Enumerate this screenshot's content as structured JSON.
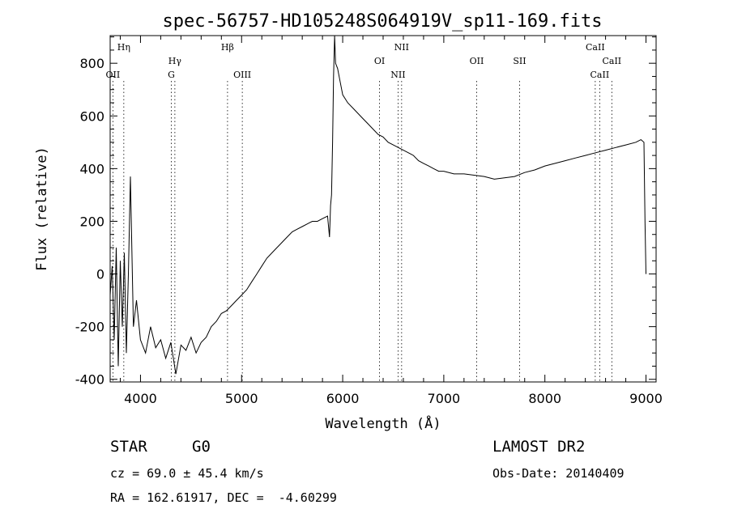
{
  "chart_data": {
    "type": "line",
    "title": "spec-56757-HD105248S064919V_sp11-169.fits",
    "xlabel": "Wavelength (Å)",
    "ylabel": "Flux (relative)",
    "xlim": [
      3700,
      9100
    ],
    "ylim": [
      -410,
      905
    ],
    "xticks": [
      4000,
      5000,
      6000,
      7000,
      8000,
      9000
    ],
    "xtick_labels": [
      "4000",
      "5000",
      "6000",
      "7000",
      "8000",
      "9000"
    ],
    "yticks": [
      -400,
      -200,
      0,
      200,
      400,
      600,
      800
    ],
    "ytick_labels": [
      "-400",
      "-200",
      "0",
      "200",
      "400",
      "600",
      "800"
    ],
    "grid": false,
    "series": [
      {
        "x": [
          3700,
          3720,
          3740,
          3760,
          3780,
          3800,
          3820,
          3840,
          3860,
          3880,
          3900,
          3930,
          3960,
          4000,
          4050,
          4100,
          4150,
          4200,
          4250,
          4300,
          4350,
          4400,
          4450,
          4500,
          4550,
          4600,
          4650,
          4700,
          4750,
          4800,
          4850,
          4900,
          4950,
          5000,
          5050,
          5100,
          5150,
          5200,
          5250,
          5300,
          5350,
          5400,
          5450,
          5500,
          5550,
          5600,
          5650,
          5700,
          5750,
          5800,
          5850,
          5870,
          5880,
          5890,
          5900,
          5910,
          5920,
          5930,
          5950,
          5970,
          6000,
          6050,
          6100,
          6150,
          6200,
          6250,
          6300,
          6350,
          6400,
          6450,
          6500,
          6550,
          6600,
          6650,
          6700,
          6750,
          6800,
          6850,
          6900,
          6950,
          7000,
          7100,
          7200,
          7300,
          7400,
          7500,
          7600,
          7700,
          7800,
          7900,
          8000,
          8100,
          8200,
          8300,
          8400,
          8500,
          8600,
          8700,
          8800,
          8900,
          8950,
          8980,
          8990,
          9000
        ],
        "y": [
          -80,
          30,
          -250,
          100,
          -350,
          50,
          -200,
          80,
          -300,
          0,
          370,
          -200,
          -100,
          -250,
          -300,
          -200,
          -280,
          -250,
          -320,
          -260,
          -380,
          -270,
          -290,
          -240,
          -300,
          -260,
          -240,
          -200,
          -180,
          -150,
          -140,
          -120,
          -100,
          -80,
          -60,
          -30,
          0,
          30,
          60,
          80,
          100,
          120,
          140,
          160,
          170,
          180,
          190,
          200,
          200,
          210,
          220,
          140,
          260,
          300,
          500,
          750,
          905,
          800,
          780,
          740,
          680,
          650,
          630,
          610,
          590,
          570,
          550,
          530,
          520,
          500,
          490,
          480,
          470,
          460,
          450,
          430,
          420,
          410,
          400,
          390,
          390,
          380,
          380,
          375,
          370,
          360,
          365,
          370,
          385,
          395,
          410,
          420,
          430,
          440,
          450,
          460,
          470,
          480,
          490,
          500,
          510,
          500,
          200,
          0
        ]
      }
    ],
    "emission_lines": [
      {
        "label": "Hη",
        "x": 3835,
        "row": "top"
      },
      {
        "label": "OII",
        "x": 3727,
        "row": "low"
      },
      {
        "label": "Hγ",
        "x": 4340,
        "row": "mid"
      },
      {
        "label": "G",
        "x": 4305,
        "row": "low"
      },
      {
        "label": "Hβ",
        "x": 4861,
        "row": "top"
      },
      {
        "label": "OIII",
        "x": 5007,
        "row": "low"
      },
      {
        "label": "NII",
        "x": 6583,
        "row": "top"
      },
      {
        "label": "OI",
        "x": 6364,
        "row": "mid"
      },
      {
        "label": "NII",
        "x": 6548,
        "row": "low"
      },
      {
        "label": "OII",
        "x": 7325,
        "row": "mid"
      },
      {
        "label": "SII",
        "x": 7750,
        "row": "mid"
      },
      {
        "label": "CaII",
        "x": 8498,
        "row": "top"
      },
      {
        "label": "CaII",
        "x": 8662,
        "row": "mid"
      },
      {
        "label": "CaII",
        "x": 8542,
        "row": "low"
      }
    ]
  },
  "info": {
    "object_class": "STAR",
    "subclass": "G0",
    "survey": "LAMOST DR2",
    "redshift": "cz = 69.0 ± 45.4 km/s",
    "obs_date": "Obs-Date: 20140409",
    "coords": "RA = 162.61917, DEC =  -4.60299"
  }
}
